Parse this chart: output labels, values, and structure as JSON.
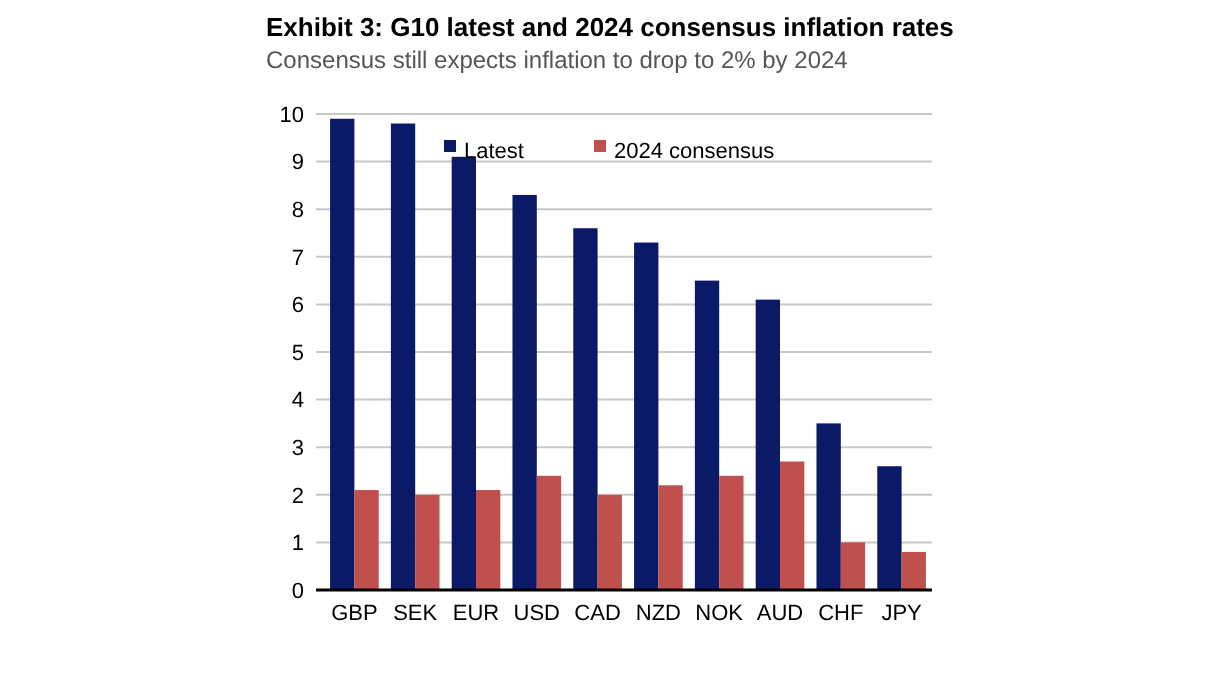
{
  "chart_data": {
    "type": "bar",
    "title": "Exhibit 3: G10 latest and 2024 consensus inflation rates",
    "subtitle": "Consensus still expects inflation to drop to 2% by 2024",
    "categories": [
      "GBP",
      "SEK",
      "EUR",
      "USD",
      "CAD",
      "NZD",
      "NOK",
      "AUD",
      "CHF",
      "JPY"
    ],
    "series": [
      {
        "name": "Latest",
        "color": "#0a1a66",
        "values": [
          9.9,
          9.8,
          9.1,
          8.3,
          7.6,
          7.3,
          6.5,
          6.1,
          3.5,
          2.6
        ]
      },
      {
        "name": "2024 consensus",
        "color": "#c0504d",
        "values": [
          2.1,
          2.0,
          2.1,
          2.4,
          2.0,
          2.2,
          2.4,
          2.7,
          1.0,
          0.8
        ]
      }
    ],
    "ylim": [
      0,
      10
    ],
    "yticks": [
      0,
      1,
      2,
      3,
      4,
      5,
      6,
      7,
      8,
      9,
      10
    ],
    "grid": "y",
    "legend": "top"
  }
}
